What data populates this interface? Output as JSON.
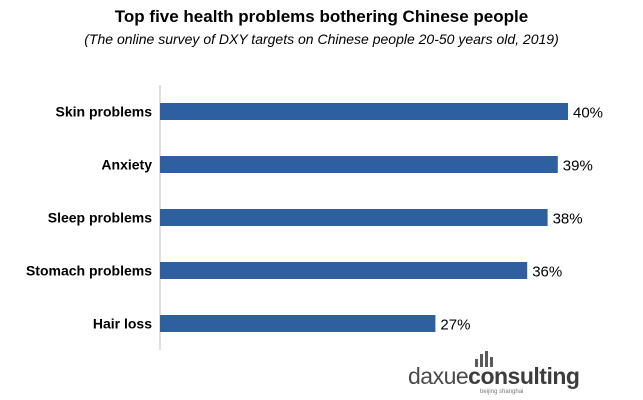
{
  "chart_data": {
    "type": "bar",
    "orientation": "horizontal",
    "title": "Top five health problems bothering Chinese people",
    "subtitle": "(The online survey of DXY targets on Chinese people 20-50 years old, 2019)",
    "categories": [
      "Skin problems",
      "Anxiety",
      "Sleep problems",
      "Stomach problems",
      "Hair loss"
    ],
    "values": [
      40,
      39,
      38,
      36,
      27
    ],
    "value_labels": [
      "40%",
      "39%",
      "38%",
      "36%",
      "27%"
    ],
    "xlim": [
      0,
      40
    ],
    "grid": false,
    "bar_color": "#2e5f9e"
  },
  "logo": {
    "text_light": "daxue",
    "text_bold": "consulting",
    "tagline": "beijing shanghai"
  }
}
